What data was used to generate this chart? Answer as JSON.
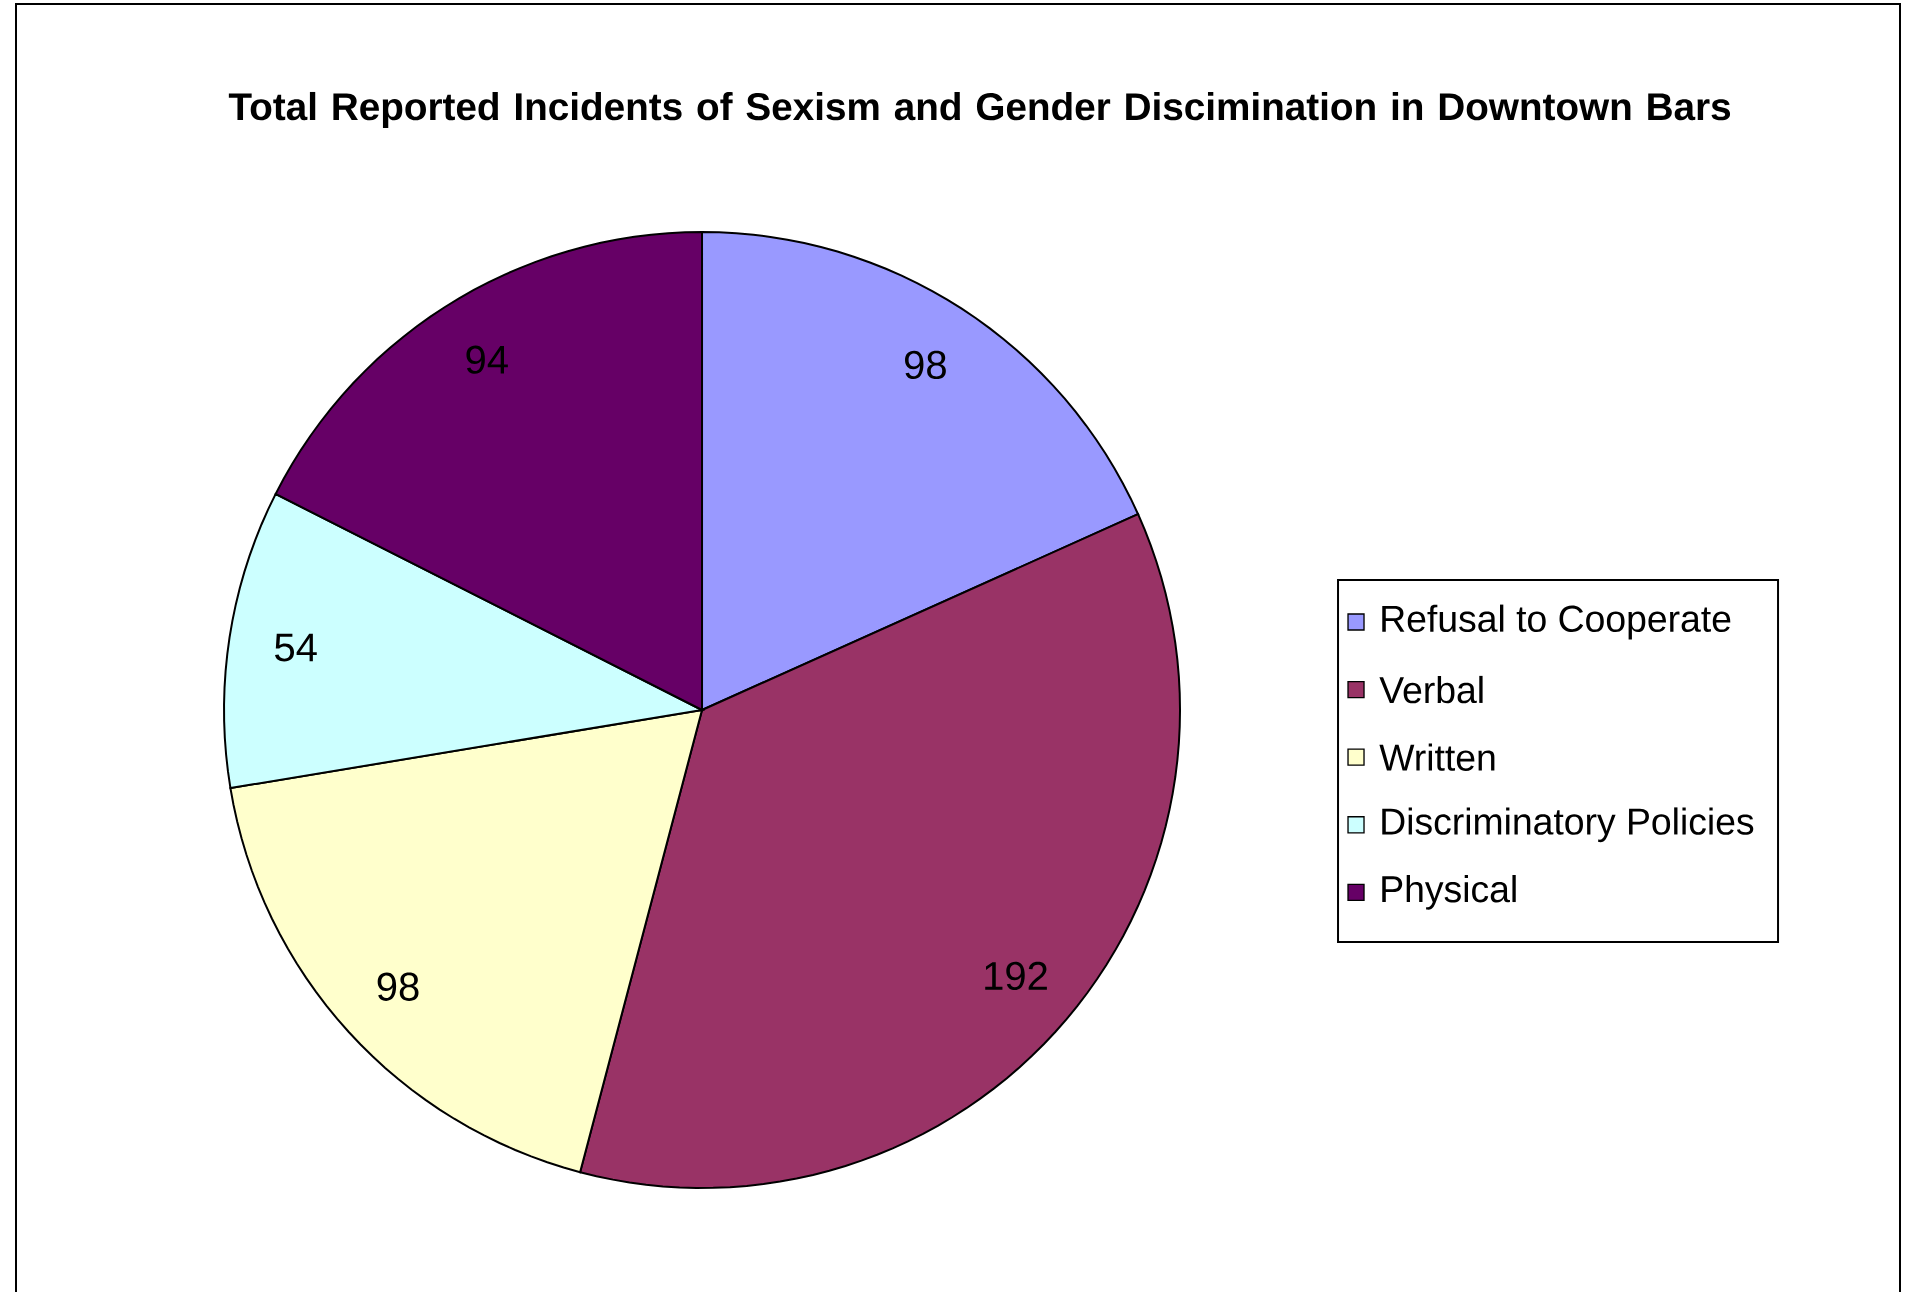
{
  "chart_data": {
    "type": "pie",
    "title": "Total Reported Incidents of Sexism and Gender Discimination in Downtown Bars",
    "categories": [
      "Refusal to Cooperate",
      "Verbal",
      "Written",
      "Discriminatory Policies",
      "Physical"
    ],
    "values": [
      98,
      192,
      98,
      54,
      94
    ],
    "colors": [
      "#9999ff",
      "#993366",
      "#ffffcc",
      "#ccffff",
      "#660066"
    ],
    "data_labels": true,
    "legend": "right"
  }
}
